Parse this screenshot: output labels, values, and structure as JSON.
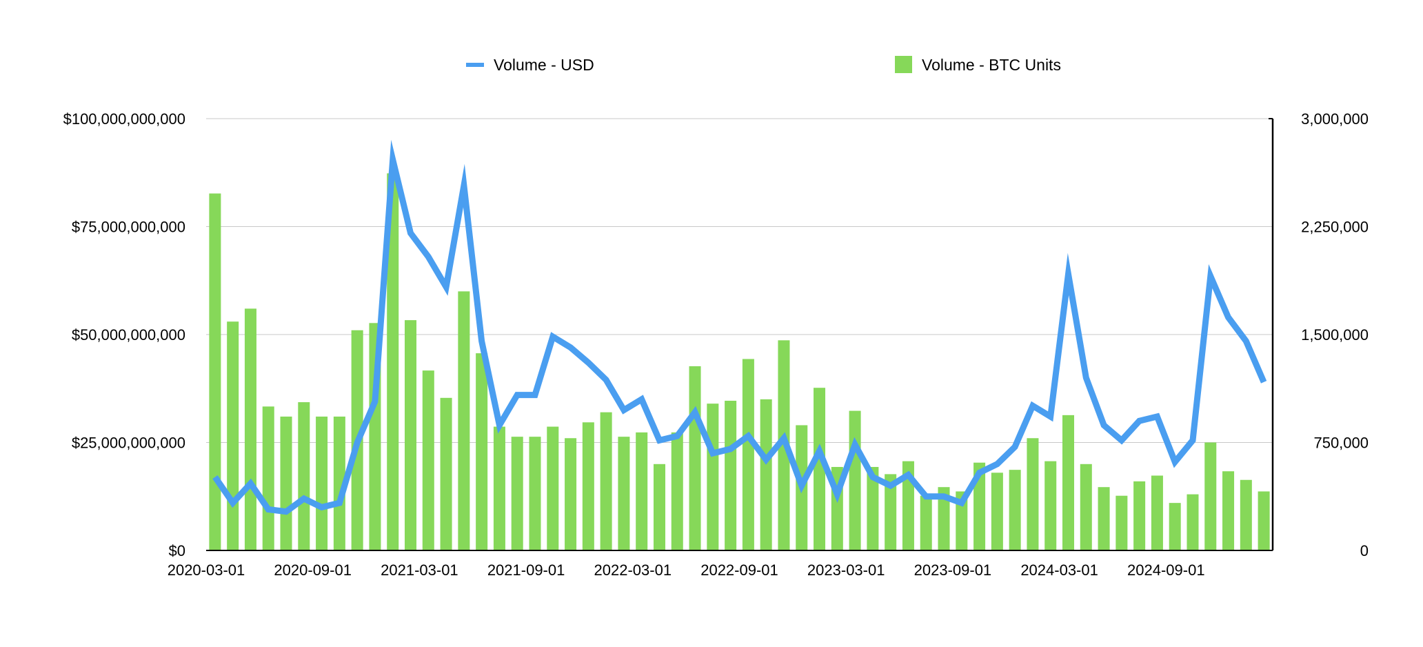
{
  "chart_data": {
    "type": "bar",
    "title": "",
    "legend": {
      "placement": "top",
      "entries": [
        {
          "label": "Volume - USD",
          "kind": "line",
          "color": "#4A9EF0"
        },
        {
          "label": "Volume - BTC Units",
          "kind": "bar",
          "color": "#86D859"
        }
      ]
    },
    "x_tick_labels": [
      "2020-03-01",
      "2020-09-01",
      "2021-03-01",
      "2021-09-01",
      "2022-03-01",
      "2022-09-01",
      "2023-03-01",
      "2023-09-01",
      "2024-03-01",
      "2024-09-01"
    ],
    "left_axis": {
      "ylim": [
        0,
        100000000000
      ],
      "tick_labels": [
        "$0",
        "$25,000,000,000",
        "$50,000,000,000",
        "$75,000,000,000",
        "$100,000,000,000"
      ]
    },
    "right_axis": {
      "ylim": [
        0,
        3000000
      ],
      "tick_labels": [
        "0",
        "750,000",
        "1,500,000",
        "2,250,000",
        "3,000,000"
      ]
    },
    "grid": true,
    "series": [
      {
        "name": "Volume - BTC Units",
        "type": "bar",
        "axis": "right",
        "color": "#86D859",
        "values": [
          2480000,
          1590000,
          1680000,
          1000000,
          930000,
          1030000,
          930000,
          930000,
          1530000,
          1580000,
          2620000,
          1600000,
          1250000,
          1060000,
          1800000,
          1370000,
          860000,
          790000,
          790000,
          860000,
          780000,
          890000,
          960000,
          790000,
          820000,
          600000,
          820000,
          1280000,
          1020000,
          1040000,
          1330000,
          1050000,
          1460000,
          870000,
          1130000,
          580000,
          970000,
          580000,
          530000,
          620000,
          380000,
          440000,
          410000,
          610000,
          540000,
          560000,
          780000,
          620000,
          940000,
          600000,
          440000,
          380000,
          480000,
          520000,
          330000,
          390000,
          750000,
          550000,
          490000,
          410000
        ]
      },
      {
        "name": "Volume - USD",
        "type": "line",
        "axis": "left",
        "color": "#4A9EF0",
        "values": [
          17000000000,
          11000000000,
          15500000000,
          9500000000,
          9000000000,
          12000000000,
          10000000000,
          11000000000,
          25000000000,
          34500000000,
          90500000000,
          73500000000,
          68000000000,
          61000000000,
          84500000000,
          48500000000,
          29000000000,
          36000000000,
          36000000000,
          49500000000,
          47000000000,
          43500000000,
          39500000000,
          32500000000,
          35000000000,
          25500000000,
          26500000000,
          32000000000,
          22500000000,
          23500000000,
          26500000000,
          21000000000,
          26000000000,
          15000000000,
          23000000000,
          13000000000,
          24500000000,
          17000000000,
          15000000000,
          17500000000,
          12500000000,
          12500000000,
          11000000000,
          18000000000,
          20000000000,
          24000000000,
          33500000000,
          31000000000,
          64000000000,
          40000000000,
          29000000000,
          25500000000,
          30000000000,
          31000000000,
          20500000000,
          25500000000,
          63500000000,
          54000000000,
          48500000000,
          39000000000
        ]
      }
    ]
  }
}
